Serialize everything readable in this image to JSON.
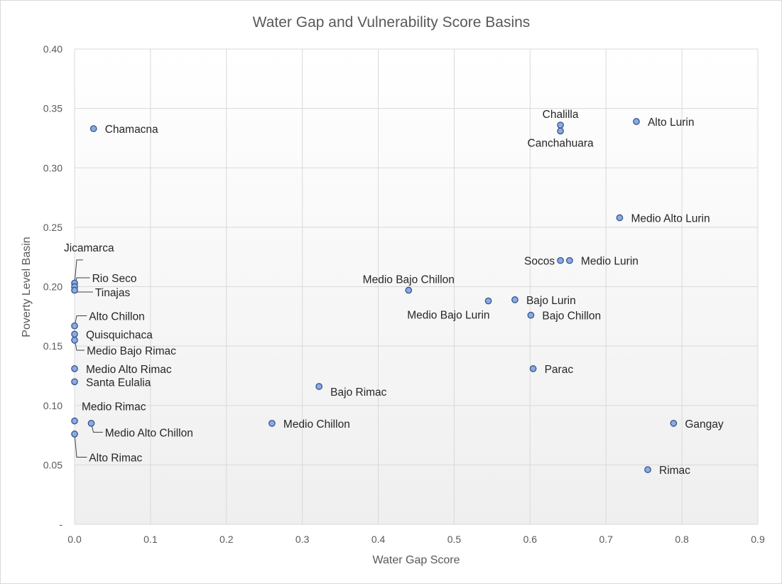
{
  "chart_data": {
    "type": "scatter",
    "title": "Water Gap and Vulnerability Score Basins",
    "xlabel": "Water Gap Score",
    "ylabel": "Poverty Level Basin",
    "xlim": [
      0,
      0.9
    ],
    "ylim": [
      0,
      0.4
    ],
    "x_ticks": [
      0,
      0.1,
      0.2,
      0.3,
      0.4,
      0.5,
      0.6,
      0.7,
      0.8,
      0.9
    ],
    "x_tick_labels": [
      "0.0",
      "0.1",
      "0.2",
      "0.3",
      "0.4",
      "0.5",
      "0.6",
      "0.7",
      "0.8",
      "0.9"
    ],
    "y_ticks": [
      0,
      0.05,
      0.1,
      0.15,
      0.2,
      0.25,
      0.3,
      0.35,
      0.4
    ],
    "y_tick_labels": [
      "-",
      "0.05",
      "0.10",
      "0.15",
      "0.20",
      "0.25",
      "0.30",
      "0.35",
      "0.40"
    ],
    "grid": true,
    "legend": false,
    "marker_fill": "#8faadc",
    "marker_edge": "#2f5597",
    "points": [
      {
        "label": "Chamacna",
        "x": 0.025,
        "y": 0.333,
        "pos": "right"
      },
      {
        "label": "Chalilla",
        "x": 0.64,
        "y": 0.336,
        "pos": "above"
      },
      {
        "label": "Canchahuara",
        "x": 0.64,
        "y": 0.331,
        "pos": "below"
      },
      {
        "label": "Alto Lurin",
        "x": 0.74,
        "y": 0.339,
        "pos": "right"
      },
      {
        "label": "Medio Alto Lurin",
        "x": 0.718,
        "y": 0.258,
        "pos": "right"
      },
      {
        "label": "Socos",
        "x": 0.64,
        "y": 0.222,
        "pos": "left"
      },
      {
        "label": "Medio Lurin",
        "x": 0.652,
        "y": 0.222,
        "pos": "right"
      },
      {
        "label": "Jicamarca",
        "x": 0.0,
        "y": 0.203,
        "pos": "leader",
        "lx": 0.014,
        "ly": 0.2225
      },
      {
        "label": "Rio Seco",
        "x": 0.0,
        "y": 0.2,
        "pos": "leader",
        "lx": 0.023,
        "ly": 0.2075
      },
      {
        "label": "Tinajas",
        "x": 0.0,
        "y": 0.197,
        "pos": "leader",
        "lx": 0.027,
        "ly": 0.1955
      },
      {
        "label": "Medio Bajo Chillon",
        "x": 0.44,
        "y": 0.197,
        "pos": "above"
      },
      {
        "label": "Medio Bajo Lurin",
        "x": 0.545,
        "y": 0.188,
        "pos": "below-left"
      },
      {
        "label": "Bajo Lurin",
        "x": 0.58,
        "y": 0.189,
        "pos": "right"
      },
      {
        "label": "Bajo Chillon",
        "x": 0.601,
        "y": 0.176,
        "pos": "right"
      },
      {
        "label": "Alto Chillon",
        "x": 0.0,
        "y": 0.167,
        "pos": "leader",
        "lx": 0.019,
        "ly": 0.1755
      },
      {
        "label": "Quisquichaca",
        "x": 0.0,
        "y": 0.16,
        "pos": "right"
      },
      {
        "label": "Medio Bajo Rimac",
        "x": 0.0,
        "y": 0.155,
        "pos": "leader",
        "lx": 0.016,
        "ly": 0.1465
      },
      {
        "label": "Medio Alto Rimac",
        "x": 0.0,
        "y": 0.131,
        "pos": "right"
      },
      {
        "label": "Parac",
        "x": 0.604,
        "y": 0.131,
        "pos": "right"
      },
      {
        "label": "Santa Eulalia",
        "x": 0.0,
        "y": 0.12,
        "pos": "right"
      },
      {
        "label": "Bajo Rimac",
        "x": 0.322,
        "y": 0.116,
        "pos": "right-below"
      },
      {
        "label": "Medio Rimac",
        "x": 0.0,
        "y": 0.087,
        "pos": "above-right"
      },
      {
        "label": "Medio Alto Chillon",
        "x": 0.022,
        "y": 0.085,
        "pos": "leader",
        "lx": 0.04,
        "ly": 0.0775
      },
      {
        "label": "Medio Chillon",
        "x": 0.26,
        "y": 0.085,
        "pos": "right"
      },
      {
        "label": "Gangay",
        "x": 0.789,
        "y": 0.085,
        "pos": "right"
      },
      {
        "label": "Alto Rimac",
        "x": 0.0,
        "y": 0.076,
        "pos": "leader",
        "lx": 0.019,
        "ly": 0.0565
      },
      {
        "label": "Rimac",
        "x": 0.755,
        "y": 0.046,
        "pos": "right"
      }
    ]
  }
}
